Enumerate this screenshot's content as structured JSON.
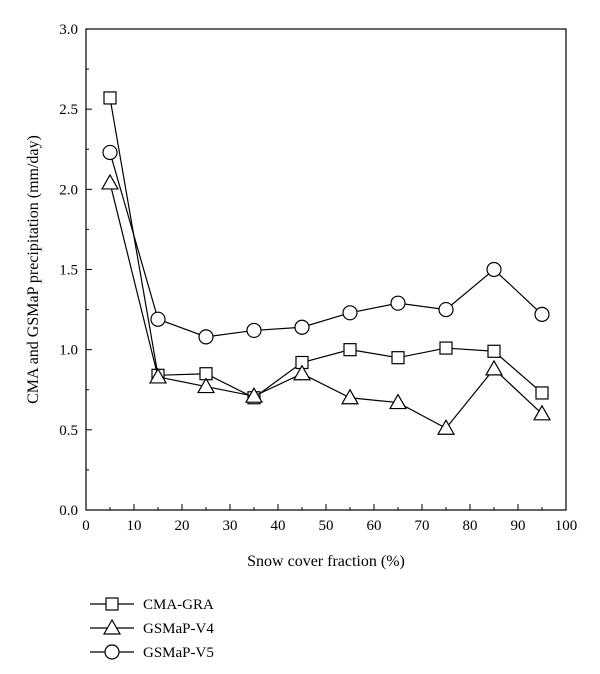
{
  "chart_data": {
    "type": "line",
    "xlabel": "Snow cover fraction (%)",
    "ylabel": "CMA and GSMaP precipitation (mm/day)",
    "xlim": [
      0,
      100
    ],
    "ylim": [
      0.0,
      3.0
    ],
    "x_ticks": [
      "0",
      "10",
      "20",
      "30",
      "40",
      "50",
      "60",
      "70",
      "80",
      "90",
      "100"
    ],
    "y_ticks": [
      "0.0",
      "0.5",
      "1.0",
      "1.5",
      "2.0",
      "2.5",
      "3.0"
    ],
    "x": [
      5,
      15,
      25,
      35,
      45,
      55,
      65,
      75,
      85,
      95
    ],
    "grid": false,
    "legend_position": "bottom-left",
    "series": [
      {
        "name": "CMA-GRA",
        "marker": "square",
        "values": [
          2.57,
          0.84,
          0.85,
          0.7,
          0.92,
          1.0,
          0.95,
          1.01,
          0.99,
          0.73
        ]
      },
      {
        "name": "GSMaP-V4",
        "marker": "triangle",
        "values": [
          2.04,
          0.83,
          0.77,
          0.71,
          0.85,
          0.7,
          0.67,
          0.51,
          0.88,
          0.6
        ]
      },
      {
        "name": "GSMaP-V5",
        "marker": "circle",
        "values": [
          2.23,
          1.19,
          1.08,
          1.12,
          1.14,
          1.23,
          1.29,
          1.25,
          1.5,
          1.22
        ]
      }
    ]
  }
}
